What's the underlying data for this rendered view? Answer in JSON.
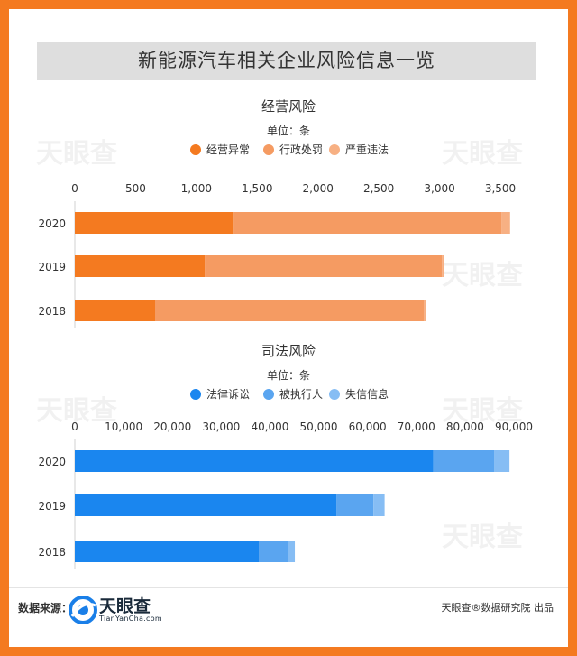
{
  "title": "新能源汽车相关企业风险信息一览",
  "source_label": "数据来源：",
  "logo": {
    "text": "天眼查",
    "sub": "TianYanCha.com"
  },
  "credit": "天眼查®数据研究院 出品",
  "watermark": "天眼查",
  "colors": {
    "border": "#f47a20"
  },
  "chart_data": [
    {
      "type": "bar",
      "stacked": true,
      "orientation": "horizontal",
      "title": "经营风险",
      "subtitle": "单位：条",
      "categories": [
        "2020",
        "2019",
        "2018"
      ],
      "x_ticks": [
        "0",
        "500",
        "1,000",
        "1,500",
        "2,000",
        "2,500",
        "3,000",
        "3,500"
      ],
      "xlim": [
        0,
        3500
      ],
      "series": [
        {
          "name": "经营异常",
          "color": "#f47a20",
          "values": [
            1300,
            1070,
            660
          ]
        },
        {
          "name": "行政处罚",
          "color": "#f59b62",
          "values": [
            2210,
            1950,
            2210
          ]
        },
        {
          "name": "严重违法",
          "color": "#f7b083",
          "values": [
            70,
            20,
            20
          ]
        }
      ],
      "legend": "top"
    },
    {
      "type": "bar",
      "stacked": true,
      "orientation": "horizontal",
      "title": "司法风险",
      "subtitle": "单位：条",
      "categories": [
        "2020",
        "2019",
        "2018"
      ],
      "x_ticks": [
        "0",
        "10,000",
        "20,000",
        "30,000",
        "40,000",
        "50,000",
        "60,000",
        "70,000",
        "80,000",
        "90,000"
      ],
      "xlim": [
        0,
        90000
      ],
      "series": [
        {
          "name": "法律诉讼",
          "color": "#1a86ef",
          "values": [
            73500,
            53600,
            37700
          ]
        },
        {
          "name": "被执行人",
          "color": "#5aa5f0",
          "values": [
            12500,
            7600,
            6100
          ]
        },
        {
          "name": "失信信息",
          "color": "#86bdf4",
          "values": [
            3100,
            2300,
            1300
          ]
        }
      ],
      "legend": "top"
    }
  ]
}
